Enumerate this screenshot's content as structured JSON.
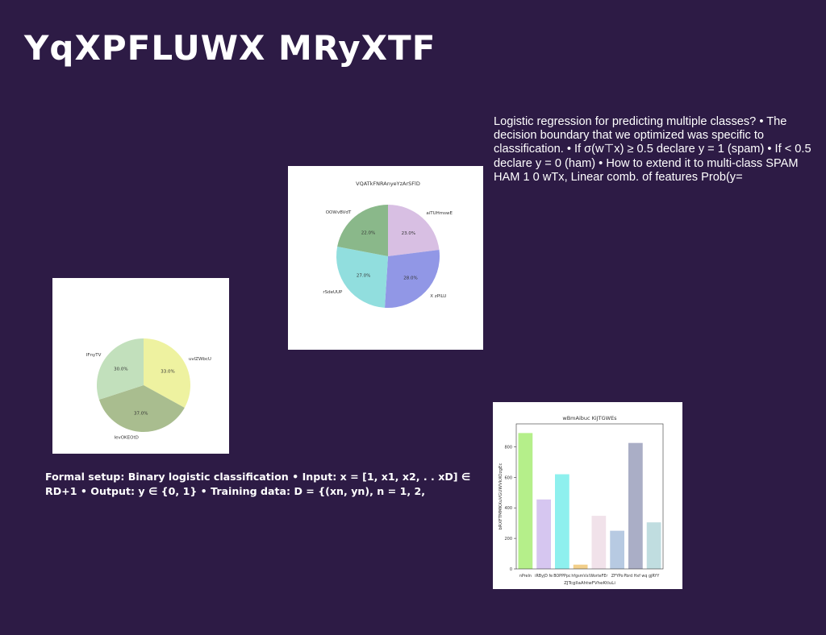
{
  "title": "YqXPFLUWX MRyXTF",
  "right_text": "Logistic regression for predicting multiple classes? • The decision boundary that we optimized was specific to classification. • If σ(w⊤x) ≥ 0.5 declare y = 1 (spam) • If < 0.5 declare y = 0 (ham) • How to extend it to multi-class SPAM HAM 1 0 wTx, Linear comb. of features Prob(y=",
  "left_text": "Formal setup: Binary logistic classification • Input: x = [1, x1, x2, . . xD] ∈ RD+1 • Output: y ∈ {0, 1} • Training data: D = {(xn, yn), n = 1, 2,",
  "chart_data": [
    {
      "type": "pie",
      "title": "",
      "labels": [
        "uvlZWbcU",
        "IevOKEOtD",
        "IFnyTV"
      ],
      "values": [
        33.0,
        37.0,
        30.0
      ],
      "colors": [
        "#eef2a0",
        "#a9bd8f",
        "#c2e0bc"
      ]
    },
    {
      "type": "pie",
      "title": "VQATkFNRAnyeYzArSFlD",
      "labels": [
        "aiTUHmswE",
        "X zPlLU",
        "rSdeUUP",
        "OOWvBVdT"
      ],
      "values": [
        23.0,
        28.0,
        27.0,
        22.0
      ],
      "colors": [
        "#d8bfe3",
        "#9197e6",
        "#91dede",
        "#8ab88a"
      ]
    },
    {
      "type": "bar",
      "title": "wBmAibuc KiJTGWEs",
      "xlabel": "ZJTcgllaAhtwFVheKtluLi",
      "ylabel": "bRXFTMMKXuVGUWVkXOzgEc",
      "categories": [
        "nPreIn",
        "iRByjD fe",
        "BOPPPpc",
        "hfgsmVxI",
        "WorteFEr",
        "ZFYPo",
        "Pbrd Hxf wq",
        "gjRYY"
      ],
      "values": [
        890,
        455,
        620,
        28,
        348,
        250,
        825,
        305
      ],
      "colors": [
        "#b5ef8a",
        "#d6c6f0",
        "#8ef0ee",
        "#f2cf8a",
        "#f1e2ea",
        "#b7cae2",
        "#aaaec6",
        "#c0dde0"
      ],
      "ylim": [
        0,
        950
      ],
      "yticks": [
        0,
        200,
        400,
        600,
        800
      ]
    }
  ]
}
